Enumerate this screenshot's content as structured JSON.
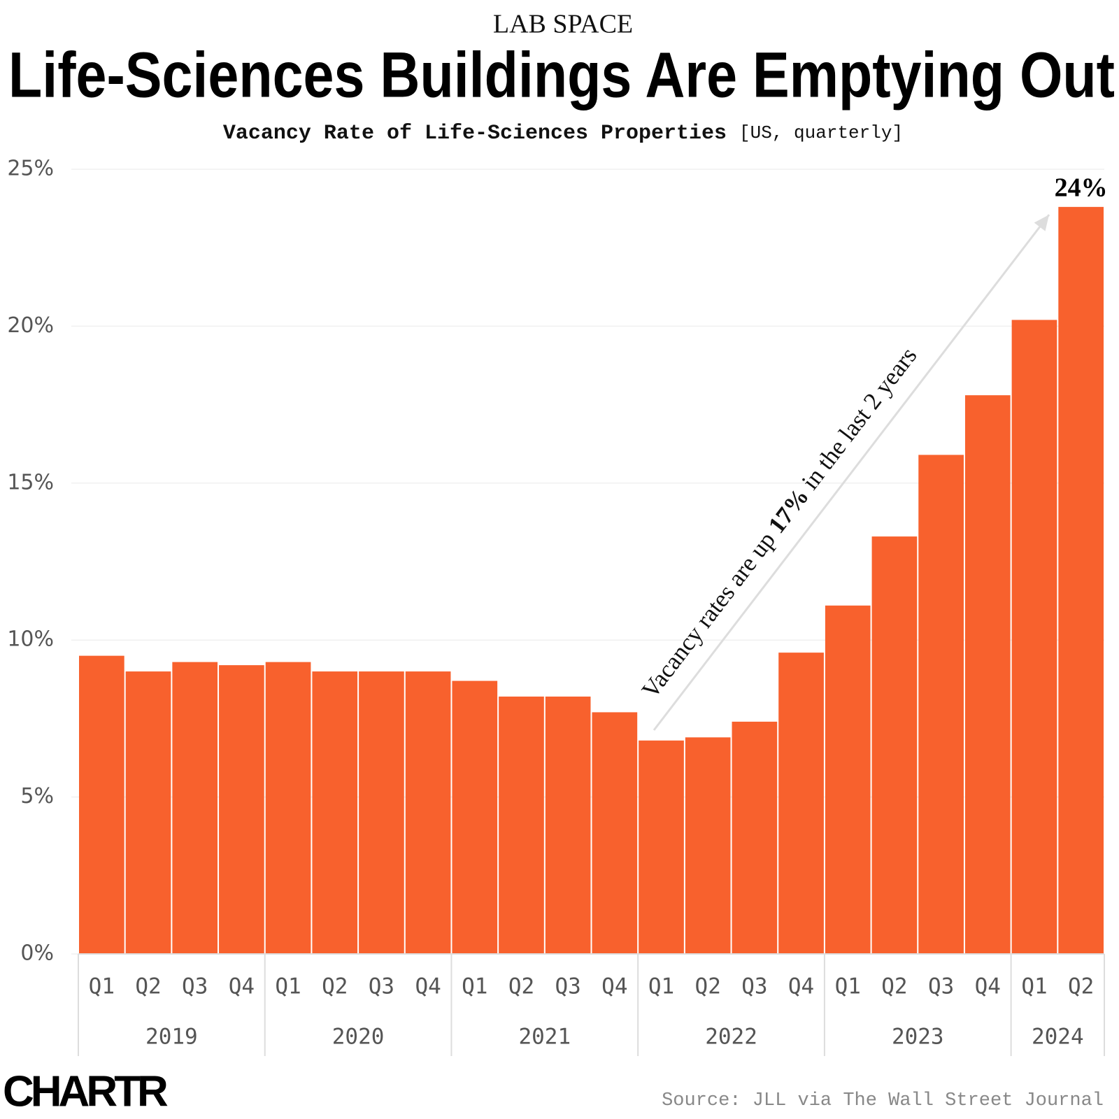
{
  "chart_data": {
    "type": "bar",
    "kicker": "LAB SPACE",
    "title": "Life-Sciences Buildings Are Emptying Out",
    "subtitle": "Vacancy Rate of Life-Sciences Properties",
    "subtitle_note": "[US, quarterly]",
    "categories": [
      "Q1",
      "Q2",
      "Q3",
      "Q4",
      "Q1",
      "Q2",
      "Q3",
      "Q4",
      "Q1",
      "Q2",
      "Q3",
      "Q4",
      "Q1",
      "Q2",
      "Q3",
      "Q4",
      "Q1",
      "Q2",
      "Q3",
      "Q4",
      "Q1",
      "Q2"
    ],
    "category_groups": [
      "2019",
      "2020",
      "2021",
      "2022",
      "2023",
      "2024"
    ],
    "values": [
      9.5,
      9.0,
      9.3,
      9.2,
      9.3,
      9.0,
      9.0,
      9.0,
      8.7,
      8.2,
      8.2,
      7.7,
      6.8,
      6.9,
      7.4,
      9.6,
      11.1,
      13.3,
      15.9,
      17.8,
      20.2,
      23.8
    ],
    "value_labels": [
      null,
      null,
      null,
      null,
      null,
      null,
      null,
      null,
      null,
      null,
      null,
      null,
      null,
      null,
      null,
      null,
      null,
      null,
      null,
      null,
      null,
      "24%"
    ],
    "color": "#f8612d",
    "ylim": [
      0,
      25
    ],
    "yticks": [
      {
        "value": 0,
        "label": "0%"
      },
      {
        "value": 5,
        "label": "5%"
      },
      {
        "value": 10,
        "label": "10%"
      },
      {
        "value": 15,
        "label": "15%"
      },
      {
        "value": 20,
        "label": "20%"
      },
      {
        "value": 25,
        "label": "25%"
      }
    ],
    "grid": true,
    "annotation": [
      "Vacancy rates are up ",
      "17%",
      " in the last 2 years"
    ],
    "source": "Source: JLL via The Wall Street Journal",
    "logo": "CHARTR"
  }
}
